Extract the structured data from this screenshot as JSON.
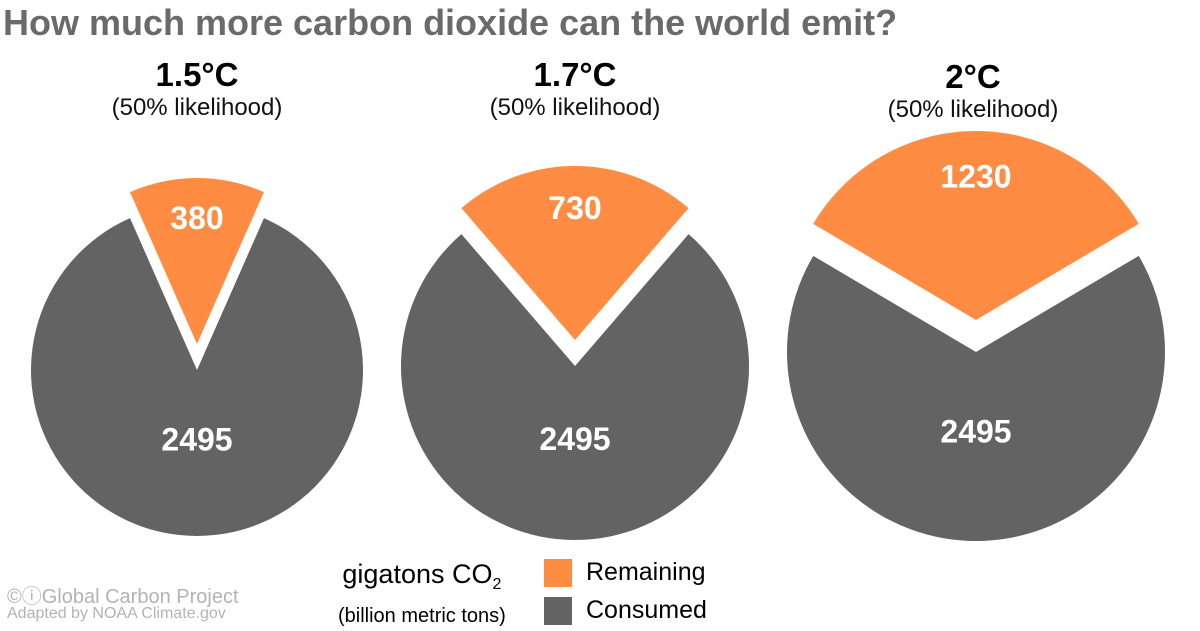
{
  "title": "How much more carbon dioxide can the world emit?",
  "colors": {
    "remaining": "#FF8C42",
    "consumed": "#636363"
  },
  "chart_data": {
    "type": "pie",
    "panels": [
      {
        "temperature": "1.5°C",
        "likelihood": "(50% likelihood)",
        "remaining": 380,
        "consumed": 2495
      },
      {
        "temperature": "1.7°C",
        "likelihood": "(50% likelihood)",
        "remaining": 730,
        "consumed": 2495
      },
      {
        "temperature": "2°C",
        "likelihood": "(50% likelihood)",
        "remaining": 1230,
        "consumed": 2495
      }
    ],
    "legend": {
      "remaining_label": "Remaining",
      "consumed_label": "Consumed",
      "placement": "bottom-center"
    },
    "units": {
      "line1_prefix": "gigatons CO",
      "line1_sub": "2",
      "line2": "(billion metric tons)"
    }
  },
  "credits": {
    "line1": "©ⓘGlobal Carbon Project",
    "line2": "Adapted by NOAA Climate.gov"
  }
}
